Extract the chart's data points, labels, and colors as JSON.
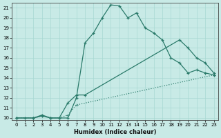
{
  "xlabel": "Humidex (Indice chaleur)",
  "ylabel": "",
  "xlim": [
    -0.5,
    23.5
  ],
  "ylim": [
    9.8,
    21.5
  ],
  "xticks": [
    0,
    1,
    2,
    3,
    4,
    5,
    6,
    7,
    8,
    9,
    10,
    11,
    12,
    13,
    14,
    15,
    16,
    17,
    18,
    19,
    20,
    21,
    22,
    23
  ],
  "yticks": [
    10,
    11,
    12,
    13,
    14,
    15,
    16,
    17,
    18,
    19,
    20,
    21
  ],
  "bg_color": "#c8eae6",
  "grid_color": "#a8d8d2",
  "line_color": "#2a7a6a",
  "line1_x": [
    0,
    1,
    2,
    3,
    4,
    5,
    6,
    7,
    8,
    9,
    10,
    11,
    12,
    13,
    14,
    15,
    16,
    17,
    18,
    19,
    20,
    21,
    22,
    23
  ],
  "line1_y": [
    10,
    10,
    10,
    10.2,
    10,
    10,
    10,
    12,
    17.5,
    18.5,
    20.0,
    21.3,
    21.2,
    20.0,
    20.5,
    19.0,
    18.5,
    17.8,
    16.0,
    15.5,
    14.5,
    14.8,
    14.5,
    14.3
  ],
  "line2_x": [
    0,
    2,
    3,
    4,
    5,
    6,
    7,
    8,
    19,
    20,
    21,
    22,
    23
  ],
  "line2_y": [
    10,
    10,
    10.3,
    10,
    10,
    11.5,
    12.3,
    12.3,
    17.8,
    17.0,
    16.0,
    15.5,
    14.5
  ],
  "line3_x": [
    0,
    2,
    3,
    4,
    5,
    6,
    7,
    23
  ],
  "line3_y": [
    10,
    10,
    10.2,
    10,
    10,
    10.3,
    11.3,
    14.3
  ],
  "line1_style": "solid",
  "line2_style": "solid",
  "line3_style": "dotted"
}
